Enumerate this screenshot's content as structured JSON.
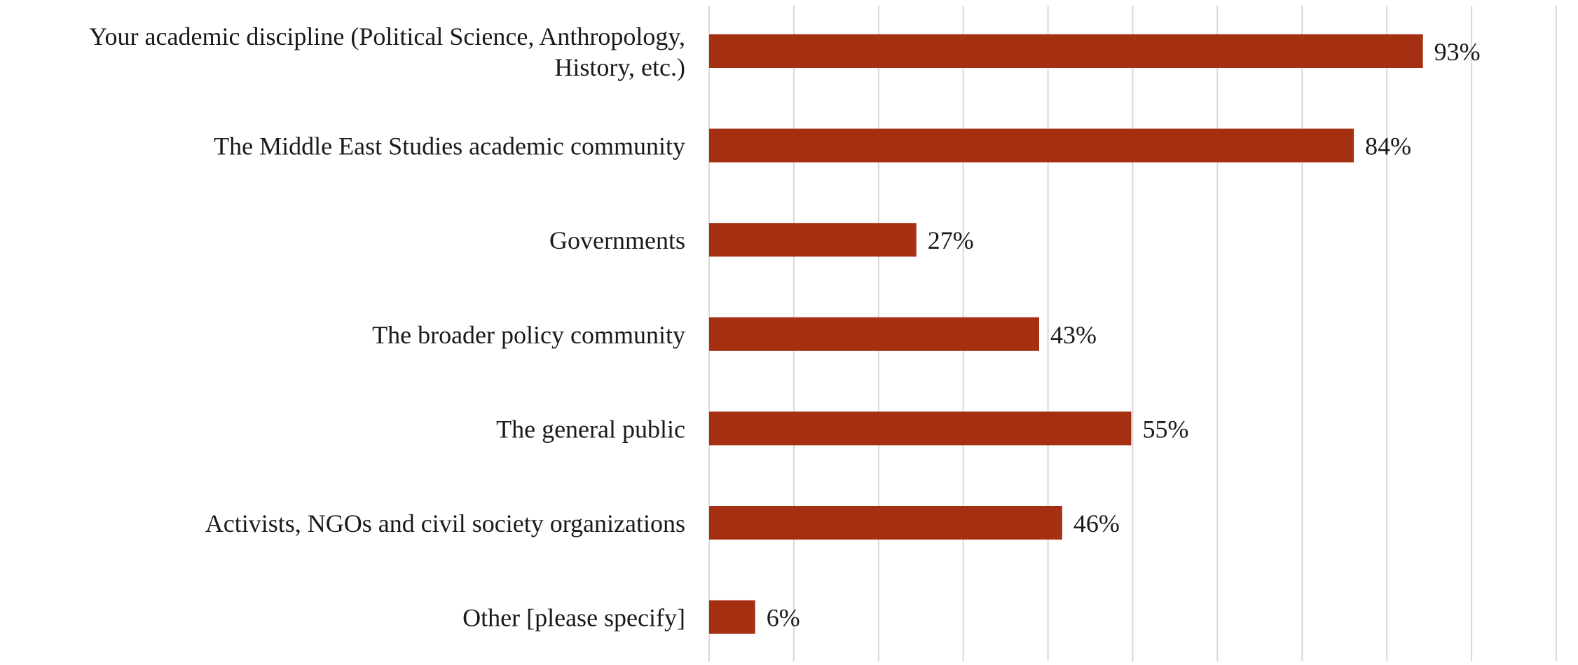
{
  "chart_data": {
    "type": "bar",
    "orientation": "horizontal",
    "categories": [
      [
        "Your academic discipline (Political Science, Anthropology,",
        "History, etc.)"
      ],
      [
        "The Middle East Studies academic community"
      ],
      [
        "Governments"
      ],
      [
        "The broader policy community"
      ],
      [
        "The general public"
      ],
      [
        "Activists, NGOs and civil society organizations"
      ],
      [
        "Other [please specify]"
      ]
    ],
    "values": [
      93,
      84,
      27,
      43,
      55,
      46,
      6
    ],
    "value_labels": [
      "93%",
      "84%",
      "27%",
      "43%",
      "55%",
      "46%",
      "6%"
    ],
    "xlim": [
      0,
      100
    ],
    "grid": "vertical",
    "bar_color": "#a52f11",
    "grid_color": "#d9d9d9"
  }
}
